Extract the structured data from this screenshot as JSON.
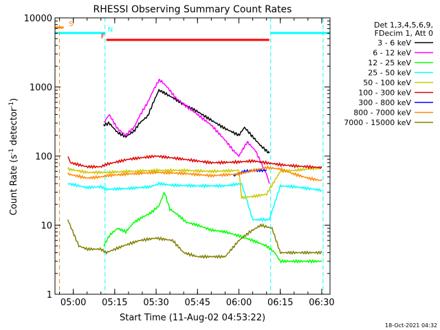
{
  "chart_data": {
    "type": "line",
    "title": "RHESSI Observing Summary Count Rates",
    "xlabel": "Start Time (11-Aug-02 04:53:22)",
    "ylabel": "Count Rate (s⁻¹ detector⁻¹)",
    "ylabel_parts": [
      "Count Rate (s",
      "-1",
      " detector",
      "-1",
      ")"
    ],
    "yscale": "log",
    "ylim": [
      1,
      10000
    ],
    "xlim": [
      "04:53:22",
      "06:33:00"
    ],
    "x_ticks": [
      "05:00",
      "05:15",
      "05:30",
      "05:45",
      "06:00",
      "06:15",
      "06:30"
    ],
    "y_ticks": [
      "1",
      "10",
      "100",
      "1000",
      "10000"
    ],
    "legend_header": [
      "Det 1,3,4,5,6,9,",
      "FDecim 1, Att 0"
    ],
    "series": [
      {
        "name": "3 - 6 keV",
        "color": "#000000",
        "x": [
          "05:11",
          "05:13",
          "05:16",
          "05:19",
          "05:22",
          "05:24",
          "05:27",
          "05:29",
          "05:31",
          "05:33",
          "05:36",
          "05:40",
          "05:45",
          "05:50",
          "05:55",
          "06:00",
          "06:02",
          "06:05",
          "06:08",
          "06:11"
        ],
        "values": [
          280,
          300,
          220,
          190,
          230,
          300,
          380,
          600,
          900,
          820,
          700,
          560,
          440,
          330,
          250,
          200,
          260,
          190,
          140,
          110
        ]
      },
      {
        "name": "6 - 12 keV",
        "color": "#ff00ff",
        "x": [
          "05:11",
          "05:13",
          "05:16",
          "05:19",
          "05:22",
          "05:24",
          "05:27",
          "05:29",
          "05:31",
          "05:32",
          "05:34",
          "05:37",
          "05:40",
          "05:45",
          "05:50",
          "05:55",
          "05:58",
          "06:00",
          "06:03",
          "06:06",
          "06:08",
          "06:10",
          "06:11"
        ],
        "values": [
          300,
          400,
          250,
          200,
          260,
          380,
          600,
          900,
          1250,
          1200,
          1000,
          700,
          560,
          400,
          280,
          170,
          120,
          100,
          160,
          120,
          80,
          55,
          40
        ]
      },
      {
        "name": "12 - 25 keV",
        "color": "#00ff00",
        "x": [
          "05:11",
          "05:13",
          "05:16",
          "05:19",
          "05:22",
          "05:25",
          "05:28",
          "05:31",
          "05:33",
          "05:35",
          "05:38",
          "05:41",
          "05:45",
          "05:50",
          "05:55",
          "06:00",
          "06:05",
          "06:10",
          "06:13",
          "06:15",
          "06:20",
          "06:25",
          "06:30"
        ],
        "values": [
          5,
          7,
          9,
          8,
          11,
          13,
          15,
          19,
          30,
          17,
          14,
          11,
          10,
          8.5,
          8,
          7,
          6,
          5,
          4,
          3,
          3,
          3,
          3
        ]
      },
      {
        "name": "25 - 50 keV",
        "color": "#00ffff",
        "x": [
          "04:58",
          "05:05",
          "05:10",
          "05:12",
          "05:20",
          "05:28",
          "05:31",
          "05:35",
          "05:45",
          "05:55",
          "06:01",
          "06:05",
          "06:11",
          "06:15",
          "06:20",
          "06:25",
          "06:30"
        ],
        "values": [
          40,
          35,
          36,
          33,
          34,
          36,
          40,
          38,
          37,
          37,
          40,
          12,
          12,
          37,
          36,
          34,
          32
        ]
      },
      {
        "name": "50 - 100 keV",
        "color": "#c8c800",
        "x": [
          "04:58",
          "05:05",
          "05:10",
          "05:12",
          "05:20",
          "05:30",
          "05:40",
          "05:50",
          "06:00",
          "06:01",
          "06:05",
          "06:10",
          "06:15",
          "06:20",
          "06:25",
          "06:30"
        ],
        "values": [
          65,
          58,
          58,
          58,
          60,
          62,
          62,
          60,
          62,
          25,
          26,
          28,
          60,
          62,
          65,
          68
        ]
      },
      {
        "name": "100 - 300 keV",
        "color": "#dd0000",
        "x": [
          "04:58",
          "04:59",
          "05:05",
          "05:10",
          "05:12",
          "05:20",
          "05:30",
          "05:40",
          "05:50",
          "06:00",
          "06:05",
          "06:10",
          "06:15",
          "06:20",
          "06:25",
          "06:30"
        ],
        "values": [
          100,
          80,
          70,
          70,
          76,
          90,
          100,
          90,
          80,
          82,
          85,
          80,
          75,
          72,
          70,
          68
        ]
      },
      {
        "name": "300 - 800 keV",
        "color": "#0000ff",
        "x": [
          "05:58",
          "06:02",
          "06:06",
          "06:10"
        ],
        "values": [
          52,
          60,
          62,
          62
        ]
      },
      {
        "name": "800 - 7000 keV",
        "color": "#ff8800",
        "x": [
          "04:58",
          "05:05",
          "05:10",
          "05:12",
          "05:20",
          "05:30",
          "05:40",
          "05:50",
          "06:00",
          "06:05",
          "06:10",
          "06:15",
          "06:20",
          "06:25",
          "06:30"
        ],
        "values": [
          55,
          48,
          50,
          52,
          55,
          58,
          56,
          52,
          55,
          62,
          68,
          65,
          55,
          48,
          44
        ]
      },
      {
        "name": "7000 - 15000 keV",
        "color": "#808000",
        "x": [
          "04:58",
          "05:02",
          "05:05",
          "05:10",
          "05:12",
          "05:18",
          "05:24",
          "05:30",
          "05:36",
          "05:40",
          "05:45",
          "05:50",
          "05:55",
          "06:00",
          "06:04",
          "06:08",
          "06:12",
          "06:15",
          "06:20",
          "06:25",
          "06:30"
        ],
        "values": [
          12,
          5,
          4.5,
          4.5,
          4,
          5,
          6,
          6.5,
          6,
          4,
          3.5,
          3.5,
          3.5,
          6,
          8,
          10,
          9,
          4,
          4,
          4,
          4
        ]
      }
    ],
    "flag_bars": [
      {
        "label": "S",
        "color": "#ff8800",
        "start": "04:53:22",
        "end": "04:56:30"
      },
      {
        "label": "N",
        "color": "#00ffff",
        "start": "04:53:22",
        "end": "05:11:30"
      },
      {
        "label": "N",
        "color": "#00ffff",
        "start": "06:11:30",
        "end": "06:33:00"
      },
      {
        "label": "F",
        "color": "#ff0000",
        "start": "05:12:00",
        "end": "06:11:00"
      }
    ],
    "markers": [
      {
        "time": "04:55:00",
        "color": "#ff8800"
      },
      {
        "time": "05:11:30",
        "color": "#00ffff"
      },
      {
        "time": "06:11:30",
        "color": "#00ffff"
      },
      {
        "time": "06:30:30",
        "color": "#00ffff"
      }
    ],
    "grid": false,
    "legend_position": "right"
  },
  "footer_timestamp": "18-Oct-2021 04:32"
}
